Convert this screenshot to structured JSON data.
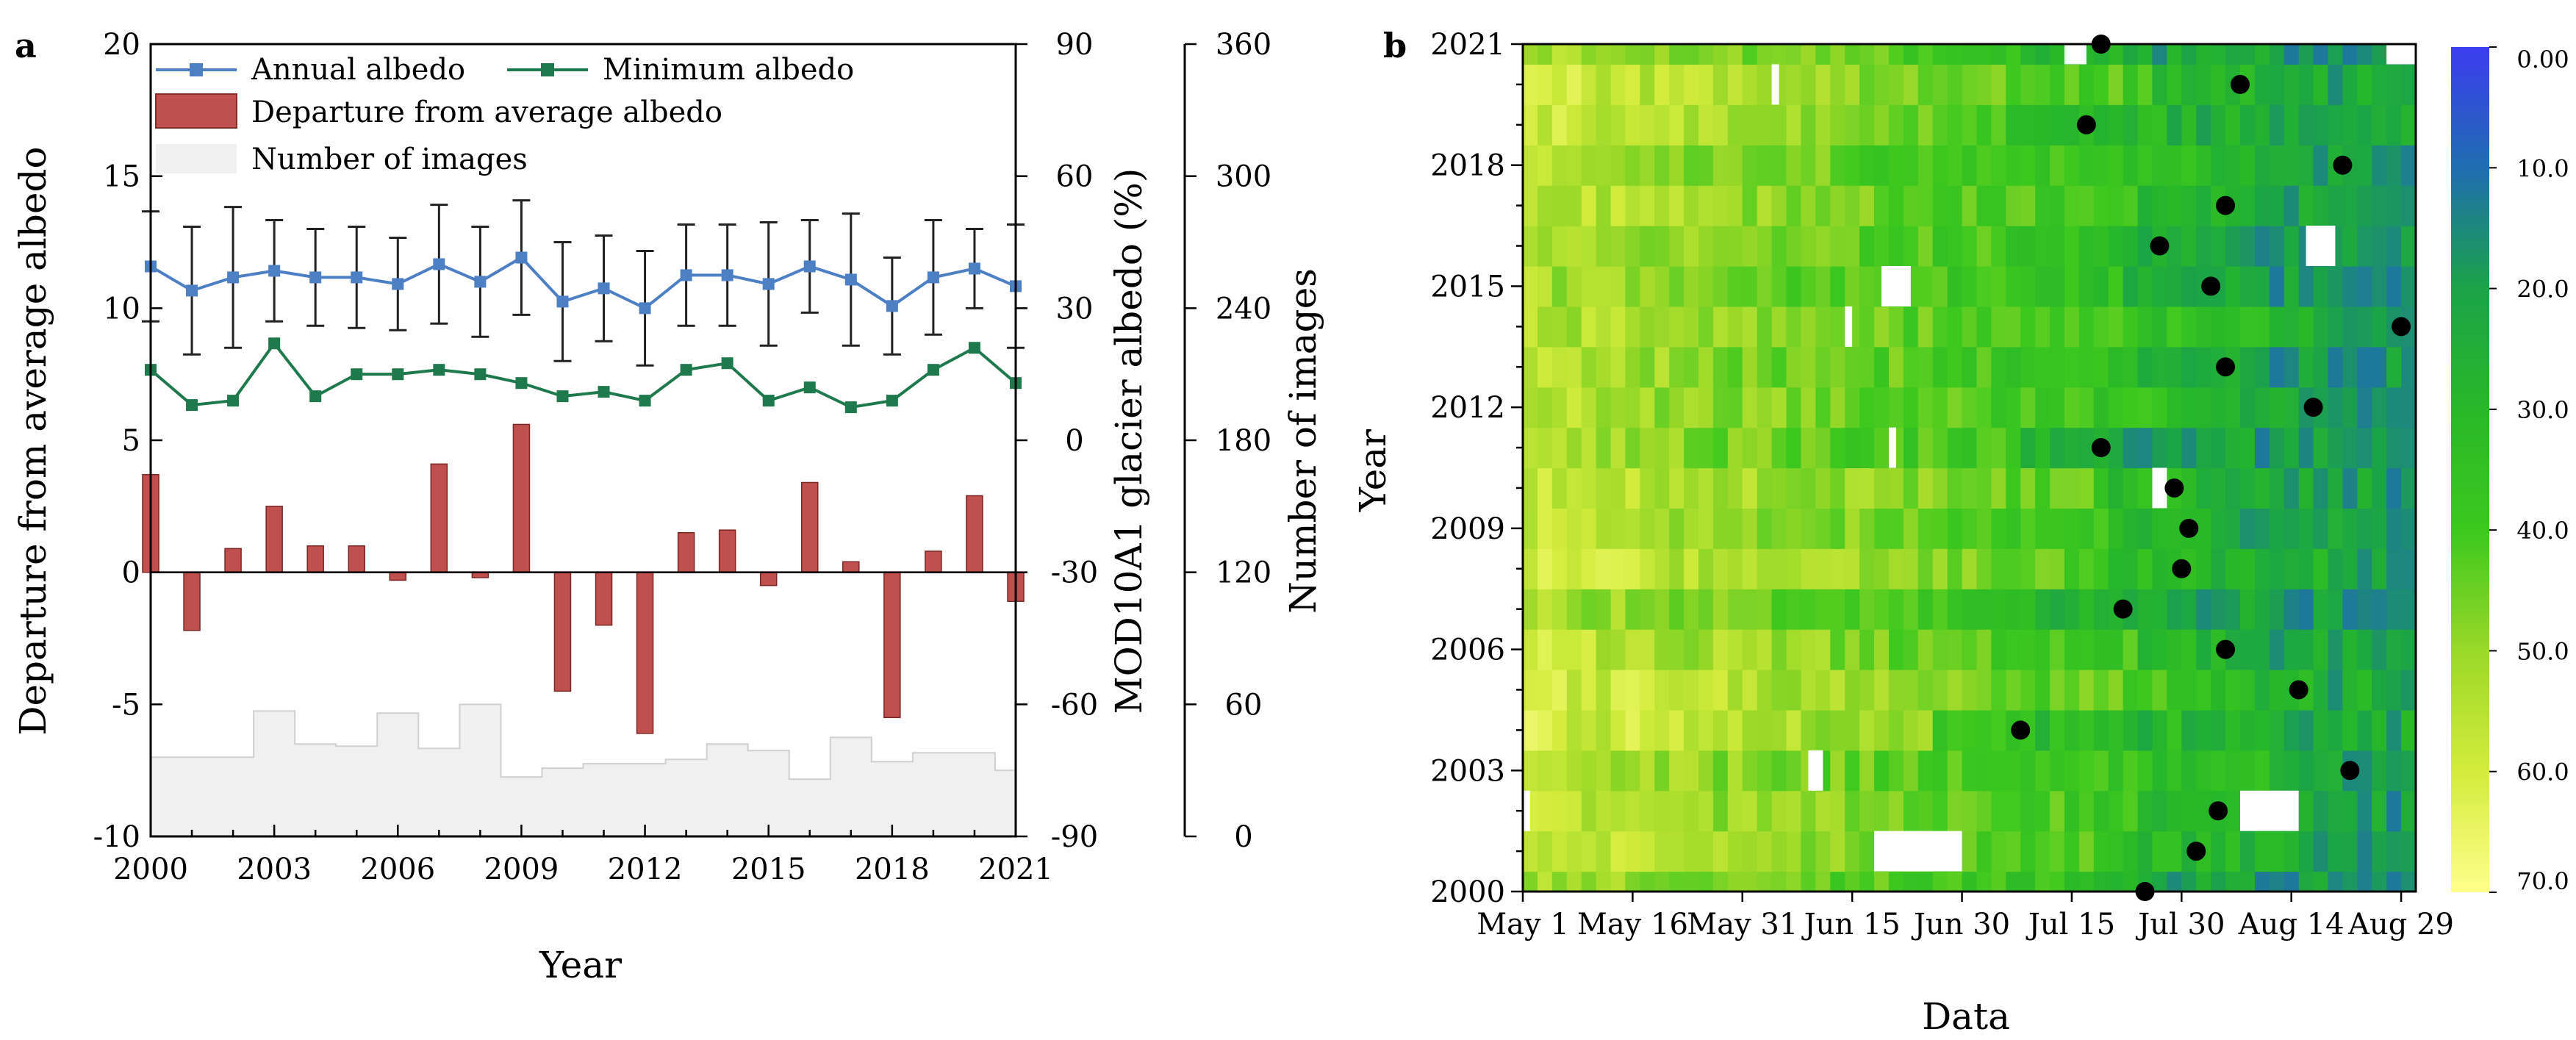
{
  "chart_data": [
    {
      "panel_label": "a",
      "type": "bar+line",
      "xlabel": "Year",
      "x_tick_labels": [
        "2000",
        "2003",
        "2006",
        "2009",
        "2012",
        "2015",
        "2018",
        "2021"
      ],
      "years": [
        2000,
        2001,
        2002,
        2003,
        2004,
        2005,
        2006,
        2007,
        2008,
        2009,
        2010,
        2011,
        2012,
        2013,
        2014,
        2015,
        2016,
        2017,
        2018,
        2019,
        2020,
        2021
      ],
      "xlim": [
        2000,
        2021
      ],
      "axes": {
        "left": {
          "label": "Departure from average albedo",
          "ylim": [
            -10,
            20
          ],
          "ticks": [
            "-10",
            "-5",
            "0",
            "5",
            "10",
            "15",
            "20"
          ]
        },
        "right1": {
          "label": "MOD10A1 glacier albedo (%)",
          "ylim": [
            -90,
            90
          ],
          "ticks": [
            "-90",
            "-60",
            "-30",
            "0",
            "30",
            "60",
            "90"
          ]
        },
        "right2": {
          "label": "Number of images",
          "ylim": [
            0,
            360
          ],
          "ticks": [
            "0",
            "60",
            "120",
            "180",
            "240",
            "300",
            "360"
          ]
        }
      },
      "legend": [
        "Annual albedo",
        "Minimum albedo",
        "Departure from average albedo",
        "Number of images"
      ],
      "series": [
        {
          "name": "Annual albedo",
          "axis": "right1",
          "color": "#4d7fc4",
          "values": [
            39.5,
            34,
            37,
            38.5,
            37,
            37,
            35.5,
            40,
            36,
            41.5,
            31.5,
            34.5,
            30,
            37.5,
            37.5,
            35.5,
            39.5,
            36.5,
            30.5,
            37,
            39,
            35
          ],
          "error": [
            12.5,
            14.5,
            16,
            11.5,
            11,
            11.5,
            10.5,
            13.5,
            12.5,
            13,
            13.5,
            12,
            13,
            11.5,
            11.5,
            14,
            10.5,
            15,
            11,
            13,
            9,
            14
          ]
        },
        {
          "name": "Minimum albedo",
          "axis": "right1",
          "color": "#1e7a4c",
          "values": [
            16,
            8,
            9,
            22,
            10,
            15,
            15,
            16,
            15,
            13,
            10,
            11,
            9,
            16,
            17.5,
            9,
            12,
            7.5,
            9,
            16,
            21,
            13
          ]
        },
        {
          "name": "Departure from average albedo",
          "axis": "left",
          "color": "#c0504d",
          "values": [
            3.7,
            -2.2,
            0.9,
            2.5,
            1.0,
            1.0,
            -0.3,
            4.1,
            -0.2,
            5.6,
            -4.5,
            -2.0,
            -6.1,
            1.5,
            1.6,
            -0.5,
            3.4,
            0.4,
            -5.5,
            0.8,
            2.9,
            -1.1
          ]
        },
        {
          "name": "Number of images",
          "axis": "right2",
          "color": "#f0f0f0",
          "values": [
            36,
            36,
            36,
            57,
            42,
            41,
            56,
            40,
            60,
            27,
            31,
            33,
            33,
            35,
            42,
            39,
            26,
            45,
            34,
            38,
            38,
            30
          ]
        }
      ]
    },
    {
      "panel_label": "b",
      "type": "heatmap",
      "xlabel": "Data",
      "ylabel": "Year",
      "x_tick_labels": [
        "May 1",
        "May 16",
        "May 31",
        "Jun 15",
        "Jun 30",
        "Jul 15",
        "Jul 30",
        "Aug 14",
        "Aug 29"
      ],
      "y_tick_labels": [
        "2000",
        "2003",
        "2006",
        "2009",
        "2012",
        "2015",
        "2018",
        "2021"
      ],
      "colorbar": {
        "ticks": [
          "0.00",
          "10.0",
          "20.0",
          "30.0",
          "40.0",
          "50.0",
          "60.0",
          "70.0"
        ],
        "range": [
          0,
          70
        ],
        "colors": [
          "#3c3cf0",
          "#1f6db0",
          "#1ba348",
          "#28b828",
          "#3cc81e",
          "#9ad828",
          "#d4ec3c",
          "#ffff8c"
        ]
      },
      "x_days_range": [
        0,
        122
      ],
      "years": [
        2000,
        2001,
        2002,
        2003,
        2004,
        2005,
        2006,
        2007,
        2008,
        2009,
        2010,
        2011,
        2012,
        2013,
        2014,
        2015,
        2016,
        2017,
        2018,
        2019,
        2020,
        2021
      ],
      "minimum_albedo_dates_day": [
        85,
        92,
        95,
        113,
        68,
        106,
        96,
        82,
        90,
        91,
        89,
        79,
        108,
        96,
        120,
        94,
        87,
        96,
        112,
        77,
        98,
        79
      ],
      "blank_patches": [
        {
          "year": 2001,
          "start_day": 48,
          "end_day": 60
        },
        {
          "year": 2002,
          "start_day": 0,
          "end_day": 1
        },
        {
          "year": 2002,
          "start_day": 98,
          "end_day": 106
        },
        {
          "year": 2003,
          "start_day": 39,
          "end_day": 41
        },
        {
          "year": 2010,
          "start_day": 86,
          "end_day": 88
        },
        {
          "year": 2011,
          "start_day": 50,
          "end_day": 51
        },
        {
          "year": 2014,
          "start_day": 44,
          "end_day": 45
        },
        {
          "year": 2015,
          "start_day": 49,
          "end_day": 53
        },
        {
          "year": 2016,
          "start_day": 107,
          "end_day": 111
        },
        {
          "year": 2020,
          "start_day": 34,
          "end_day": 35
        },
        {
          "year": 2021,
          "start_day": 74,
          "end_day": 77
        },
        {
          "year": 2021,
          "start_day": 118,
          "end_day": 122
        }
      ]
    }
  ]
}
